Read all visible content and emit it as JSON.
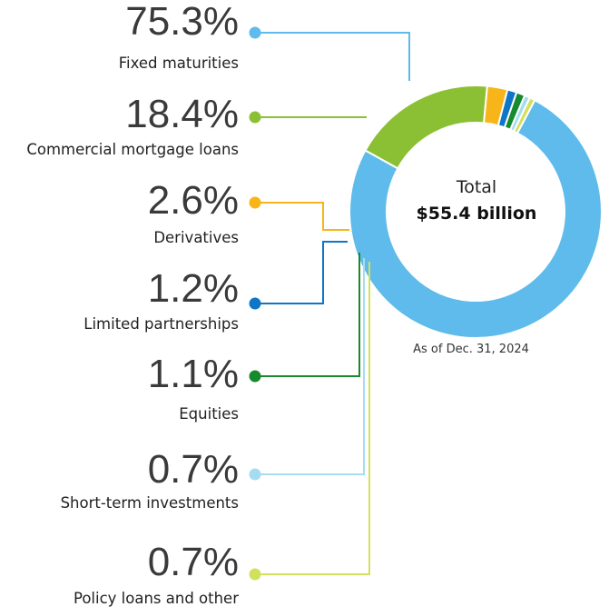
{
  "chart_data": {
    "type": "pie",
    "donut": true,
    "center_label": "Total",
    "center_value": "$55.4 billion",
    "note": "As of Dec. 31, 2024",
    "slices": [
      {
        "label": "Fixed maturities",
        "value": 75.3,
        "display": "75.3%",
        "color": "#5ebbeb"
      },
      {
        "label": "Commercial mortgage loans",
        "value": 18.4,
        "display": "18.4%",
        "color": "#8cc034"
      },
      {
        "label": "Derivatives",
        "value": 2.6,
        "display": "2.6%",
        "color": "#f7b519"
      },
      {
        "label": "Limited partnerships",
        "value": 1.2,
        "display": "1.2%",
        "color": "#0f76c7"
      },
      {
        "label": "Equities",
        "value": 1.1,
        "display": "1.1%",
        "color": "#168a2d"
      },
      {
        "label": "Short-term investments",
        "value": 0.7,
        "display": "0.7%",
        "color": "#a6dcf2"
      },
      {
        "label": "Policy loans and other",
        "value": 0.7,
        "display": "0.7%",
        "color": "#d2e15d"
      }
    ]
  }
}
